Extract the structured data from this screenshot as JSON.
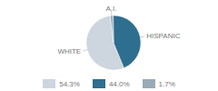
{
  "chart_data": {
    "type": "pie",
    "categories": [
      "WHITE",
      "HISPANIC",
      "A.I."
    ],
    "values": [
      54.3,
      44.0,
      1.7
    ],
    "value_labels": [
      "54.3%",
      "44.0%",
      "1.7%"
    ],
    "colors": [
      "#cdd5df",
      "#2e6e8e",
      "#9aaab8"
    ],
    "legend": "bottom"
  }
}
